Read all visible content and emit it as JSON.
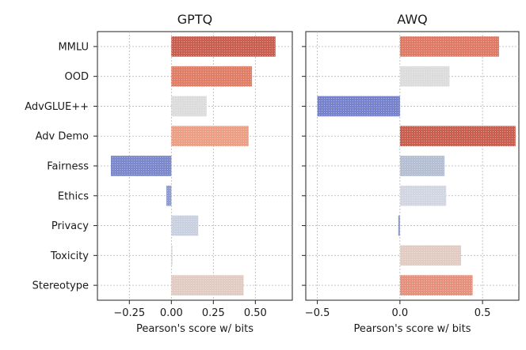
{
  "chart_data": {
    "type": "bar",
    "orientation": "horizontal",
    "categories": [
      "MMLU",
      "OOD",
      "AdvGLUE++",
      "Adv Demo",
      "Fairness",
      "Ethics",
      "Privacy",
      "Toxicity",
      "Stereotype"
    ],
    "panels": [
      {
        "title": "GPTQ",
        "xlabel": "Pearson's score w/ bits",
        "xlim": [
          -0.44,
          0.72
        ],
        "xticks": [
          -0.25,
          0.0,
          0.25,
          0.5
        ],
        "xtick_labels": [
          "−0.25",
          "0.00",
          "0.25",
          "0.50"
        ],
        "values": [
          0.62,
          0.48,
          0.21,
          0.46,
          -0.36,
          -0.03,
          0.16,
          0.0,
          0.43
        ],
        "colors": [
          "#c95f50",
          "#e07e68",
          "#dcdcdc",
          "#ed9f86",
          "#7b89cc",
          "#8d9bd0",
          "#c9d0e0",
          "#dcdcdc",
          "#e2cbc3"
        ],
        "grid": true
      },
      {
        "title": "AWQ",
        "xlabel": "Pearson's score w/ bits",
        "xlim": [
          -0.57,
          0.72
        ],
        "xticks": [
          -0.5,
          0.0,
          0.5
        ],
        "xtick_labels": [
          "−0.5",
          "0.0",
          "0.5"
        ],
        "values": [
          0.6,
          0.3,
          -0.5,
          0.7,
          0.27,
          0.28,
          -0.01,
          0.37,
          0.44
        ],
        "colors": [
          "#df7a66",
          "#dcdcdc",
          "#7683cc",
          "#c95f50",
          "#b5bfd4",
          "#d2d6e2",
          "#8d9bd0",
          "#e2cbc3",
          "#e5917d"
        ],
        "grid": true
      }
    ]
  }
}
